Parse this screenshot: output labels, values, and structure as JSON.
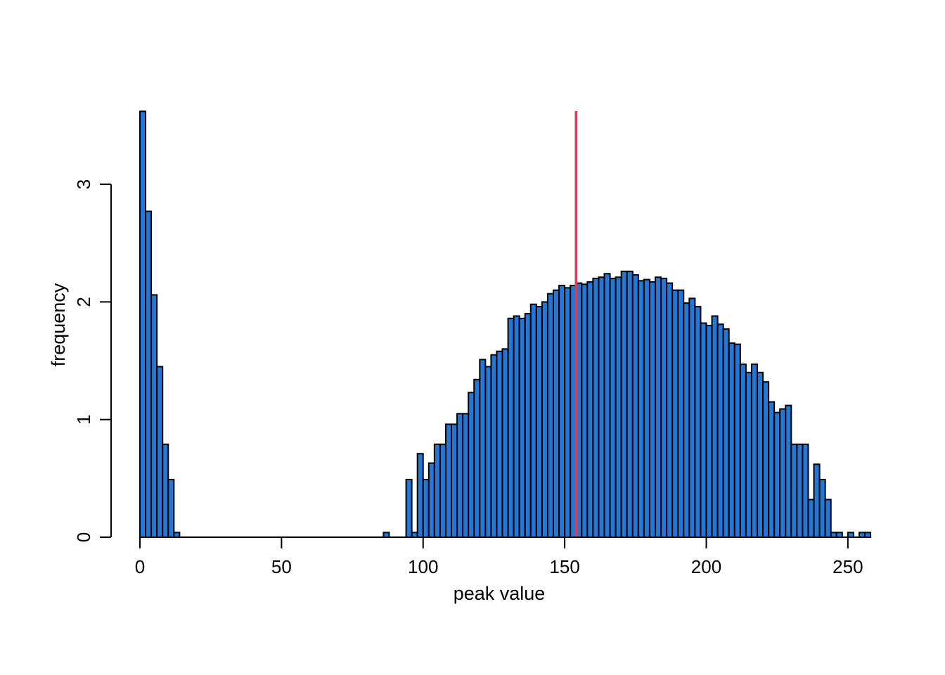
{
  "chart_data": {
    "type": "bar",
    "subtype": "histogram",
    "xlabel": "peak value",
    "ylabel": "frequency",
    "xlim": [
      0,
      255
    ],
    "ylim": [
      0,
      3.6
    ],
    "xticks": [
      0,
      50,
      100,
      150,
      200,
      250
    ],
    "yticks": [
      0,
      1,
      2,
      3
    ],
    "bin_width": 2,
    "bin_start": 0,
    "values": [
      3.62,
      2.77,
      2.06,
      1.45,
      0.79,
      0.49,
      0.04,
      0,
      0,
      0,
      0,
      0,
      0,
      0,
      0,
      0,
      0,
      0,
      0,
      0,
      0,
      0,
      0,
      0,
      0,
      0,
      0,
      0,
      0,
      0,
      0,
      0,
      0,
      0,
      0,
      0,
      0,
      0,
      0,
      0,
      0,
      0,
      0,
      0.04,
      0,
      0,
      0,
      0.49,
      0.04,
      0.71,
      0.49,
      0.63,
      0.79,
      0.79,
      0.96,
      0.96,
      1.05,
      1.05,
      1.23,
      1.34,
      1.51,
      1.45,
      1.55,
      1.58,
      1.6,
      1.86,
      1.88,
      1.86,
      1.9,
      1.98,
      1.96,
      2.0,
      2.07,
      2.1,
      2.14,
      2.12,
      2.14,
      2.16,
      2.15,
      2.17,
      2.2,
      2.21,
      2.24,
      2.2,
      2.21,
      2.26,
      2.26,
      2.23,
      2.18,
      2.19,
      2.17,
      2.21,
      2.2,
      2.16,
      2.1,
      2.1,
      1.99,
      2.03,
      1.96,
      1.82,
      1.8,
      1.88,
      1.81,
      1.77,
      1.65,
      1.64,
      1.47,
      1.4,
      1.47,
      1.4,
      1.32,
      1.15,
      1.06,
      1.09,
      1.12,
      0.79,
      0.79,
      0.79,
      0.32,
      0.62,
      0.49,
      0.32,
      0.04,
      0.04,
      0,
      0.04,
      0,
      0.04,
      0.04
    ],
    "vline": 154,
    "colors": {
      "bar_fill": "#2477d4",
      "bar_stroke": "#000000",
      "vline": "#d3405c"
    }
  }
}
